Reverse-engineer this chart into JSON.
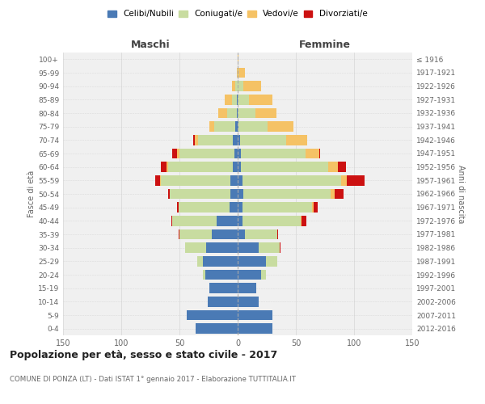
{
  "age_groups": [
    "0-4",
    "5-9",
    "10-14",
    "15-19",
    "20-24",
    "25-29",
    "30-34",
    "35-39",
    "40-44",
    "45-49",
    "50-54",
    "55-59",
    "60-64",
    "65-69",
    "70-74",
    "75-79",
    "80-84",
    "85-89",
    "90-94",
    "95-99",
    "100+"
  ],
  "birth_years": [
    "2012-2016",
    "2007-2011",
    "2002-2006",
    "1997-2001",
    "1992-1996",
    "1987-1991",
    "1982-1986",
    "1977-1981",
    "1972-1976",
    "1967-1971",
    "1962-1966",
    "1957-1961",
    "1952-1956",
    "1947-1951",
    "1942-1946",
    "1937-1941",
    "1932-1936",
    "1927-1931",
    "1922-1926",
    "1917-1921",
    "≤ 1916"
  ],
  "colors": {
    "celibi": "#4a7ab5",
    "coniugati": "#c8dca0",
    "vedovi": "#f5c265",
    "divorziati": "#cc1111"
  },
  "males": {
    "celibi": [
      36,
      44,
      26,
      24,
      28,
      30,
      27,
      22,
      18,
      7,
      6,
      6,
      4,
      3,
      4,
      2,
      1,
      1,
      0,
      0,
      0
    ],
    "coniugati": [
      0,
      0,
      0,
      0,
      2,
      5,
      18,
      28,
      38,
      44,
      52,
      60,
      56,
      47,
      30,
      18,
      8,
      4,
      2,
      0,
      0
    ],
    "vedovi": [
      0,
      0,
      0,
      0,
      0,
      0,
      0,
      0,
      0,
      0,
      0,
      1,
      1,
      2,
      3,
      4,
      8,
      6,
      3,
      1,
      0
    ],
    "divorziati": [
      0,
      0,
      0,
      0,
      0,
      0,
      0,
      1,
      1,
      1,
      2,
      4,
      5,
      4,
      1,
      0,
      0,
      0,
      0,
      0,
      0
    ]
  },
  "females": {
    "celibi": [
      30,
      30,
      18,
      16,
      20,
      24,
      18,
      6,
      4,
      4,
      5,
      4,
      3,
      3,
      2,
      1,
      0,
      0,
      0,
      0,
      0
    ],
    "coniugati": [
      0,
      0,
      0,
      0,
      4,
      10,
      18,
      28,
      50,
      60,
      75,
      85,
      75,
      55,
      40,
      25,
      15,
      10,
      5,
      1,
      0
    ],
    "vedovi": [
      0,
      0,
      0,
      0,
      0,
      0,
      0,
      0,
      1,
      1,
      3,
      5,
      8,
      12,
      18,
      22,
      18,
      20,
      15,
      5,
      1
    ],
    "divorziati": [
      0,
      0,
      0,
      0,
      0,
      0,
      1,
      1,
      4,
      4,
      8,
      15,
      7,
      1,
      0,
      0,
      0,
      0,
      0,
      0,
      0
    ]
  },
  "title": "Popolazione per età, sesso e stato civile - 2017",
  "subtitle": "COMUNE DI PONZA (LT) - Dati ISTAT 1° gennaio 2017 - Elaborazione TUTTITALIA.IT",
  "xlabel_left": "Maschi",
  "xlabel_right": "Femmine",
  "ylabel_left": "Fasce di età",
  "ylabel_right": "Anni di nascita",
  "xlim": 150,
  "legend_labels": [
    "Celibi/Nubili",
    "Coniugati/e",
    "Vedovi/e",
    "Divorziati/e"
  ],
  "background_color": "#ffffff",
  "plot_bg_color": "#f0f0f0",
  "grid_color": "#cccccc"
}
